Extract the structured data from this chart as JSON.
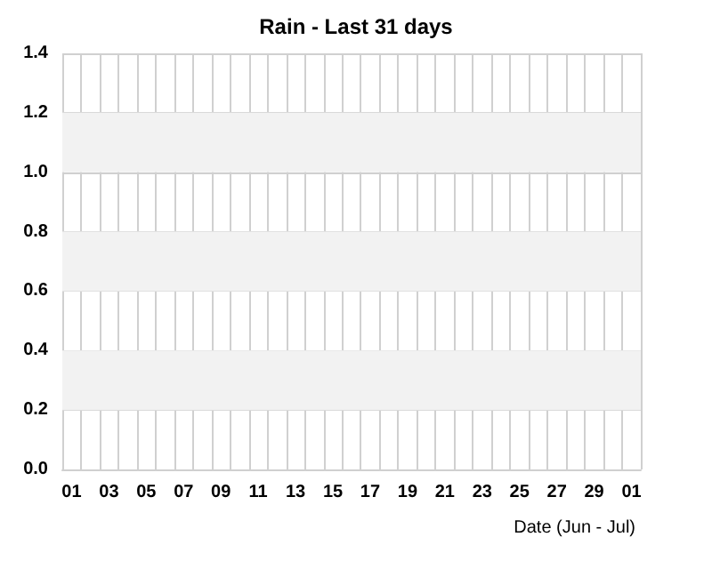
{
  "chart_data": {
    "type": "bar",
    "title": "Rain - Last 31 days",
    "xlabel": "Date (Jun - Jul)",
    "categories": [
      "01",
      null,
      "03",
      null,
      "05",
      null,
      "07",
      null,
      "09",
      null,
      "11",
      null,
      "13",
      null,
      "15",
      null,
      "17",
      null,
      "19",
      null,
      "21",
      null,
      "23",
      null,
      "25",
      null,
      "27",
      null,
      "29",
      null,
      "01"
    ],
    "values": [
      0,
      0,
      0,
      0,
      0,
      0,
      0,
      0,
      0,
      0,
      0,
      0,
      0,
      0,
      0,
      0,
      0,
      0,
      0,
      0,
      0,
      0,
      0,
      0,
      0,
      0,
      0,
      0,
      0,
      0,
      0
    ],
    "ylim": [
      0,
      1.4
    ],
    "yticks": [
      {
        "value": 0,
        "label": "0.0"
      },
      0.2,
      0.4,
      0.6,
      0.8,
      {
        "value": 1,
        "label": "1.0"
      },
      1.2,
      1.4
    ],
    "bands": [
      {
        "axis": "y",
        "from": 0.2,
        "to": 0.4,
        "color": "#f2f2f2"
      },
      {
        "axis": "y",
        "from": 0.6,
        "to": 0.8,
        "color": "#f2f2f2"
      },
      {
        "axis": "y",
        "from": 1.0,
        "to": 1.2,
        "color": "#f2f2f2"
      }
    ],
    "grid": true
  }
}
